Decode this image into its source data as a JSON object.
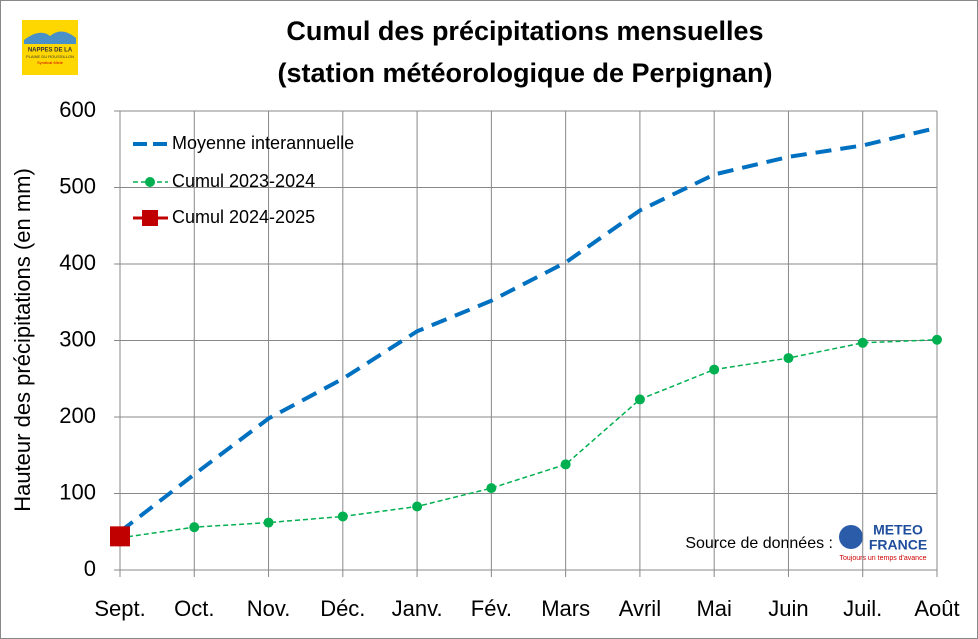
{
  "chart_data": {
    "type": "line",
    "title": [
      "Cumul des précipitations mensuelles",
      "(station météorologique de Perpignan)"
    ],
    "ylabel": "Hauteur des précipitations (en mm)",
    "categories": [
      "Sept.",
      "Oct.",
      "Nov.",
      "Déc.",
      "Janv.",
      "Fév.",
      "Mars",
      "Avril",
      "Mai",
      "Juin",
      "Juil.",
      "Août"
    ],
    "series": [
      {
        "name": "Moyenne interannuelle",
        "color": "#0070c0",
        "values": [
          50,
          125,
          198,
          250,
          312,
          352,
          402,
          470,
          517,
          540,
          555,
          578
        ]
      },
      {
        "name": "Cumul 2023-2024",
        "color": "#00b050",
        "values": [
          42,
          56,
          62,
          70,
          83,
          107,
          138,
          223,
          262,
          277,
          297,
          301
        ]
      },
      {
        "name": "Cumul 2024-2025",
        "color": "#c00000",
        "values": [
          44,
          null,
          null,
          null,
          null,
          null,
          null,
          null,
          null,
          null,
          null,
          null
        ]
      }
    ],
    "ylim": [
      0,
      600
    ],
    "yticks": [
      0,
      100,
      200,
      300,
      400,
      500,
      600
    ],
    "grid": true,
    "legend": "top-left",
    "source": "Source de données :",
    "source_logo": [
      "METEO",
      "FRANCE",
      "Toujours un temps d'avance"
    ],
    "logo_lines": [
      "NAPPES DE LA",
      "PLAINE DU ROUSSILLON",
      "Syndicat Mixte"
    ]
  }
}
